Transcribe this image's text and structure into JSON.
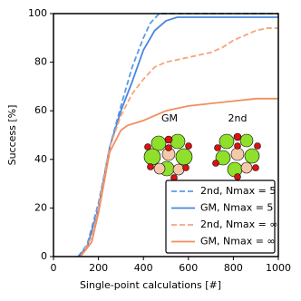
{
  "chart_data": {
    "type": "line",
    "xlabel": "Single-point calculations [#]",
    "ylabel": "Success [%]",
    "xlim": [
      0,
      1000
    ],
    "xticks": [
      0,
      200,
      400,
      600,
      800,
      1000
    ],
    "ylim": [
      0,
      100
    ],
    "yticks": [
      0,
      20,
      40,
      60,
      80,
      100
    ],
    "grid": false,
    "legend": "lower right",
    "annotations": [
      "GM",
      "2nd"
    ],
    "series": [
      {
        "name": "2nd, Nmax = 5",
        "color": "#5b9be6",
        "dashed": true,
        "x": [
          110,
          150,
          200,
          250,
          300,
          350,
          400,
          430,
          470,
          1000
        ],
        "values": [
          0,
          5,
          22,
          45,
          62,
          78,
          90,
          96,
          100,
          100
        ]
      },
      {
        "name": "GM, Nmax = 5",
        "color": "#4a86dc",
        "dashed": false,
        "x": [
          110,
          150,
          200,
          250,
          300,
          350,
          400,
          450,
          500,
          550,
          1000
        ],
        "values": [
          0,
          4,
          20,
          45,
          60,
          72,
          85,
          93,
          97,
          98.5,
          98.5
        ]
      },
      {
        "name": "2nd, Nmax = ∞",
        "color": "#f4a57a",
        "dashed": true,
        "x": [
          120,
          170,
          200,
          250,
          300,
          350,
          400,
          450,
          500,
          600,
          700,
          750,
          800,
          900,
          950,
          1000
        ],
        "values": [
          0,
          8,
          20,
          45,
          58,
          67,
          73,
          78,
          80,
          82,
          84,
          86,
          89,
          93,
          94,
          94
        ]
      },
      {
        "name": "GM, Nmax = ∞",
        "color": "#f28e5e",
        "dashed": false,
        "x": [
          120,
          170,
          200,
          250,
          300,
          330,
          400,
          450,
          500,
          550,
          600,
          700,
          800,
          900,
          1000
        ],
        "values": [
          0,
          6,
          18,
          43,
          52,
          54,
          56,
          58,
          60,
          61,
          62,
          63,
          64,
          65,
          65
        ]
      }
    ]
  }
}
